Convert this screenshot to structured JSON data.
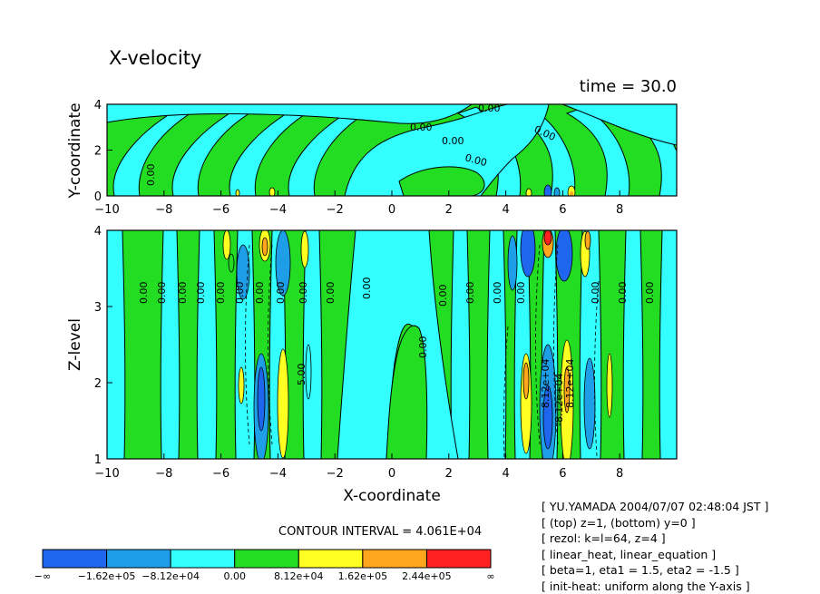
{
  "chart_data": [
    {
      "type": "heatmap",
      "title": "X-velocity",
      "subtitle": "time = 30.0",
      "ylabel": "Y-coordinate",
      "xlim": [
        -10,
        10
      ],
      "ylim": [
        0,
        4
      ],
      "xticks": [
        "-10",
        "-8",
        "-6",
        "-4",
        "-2",
        "0",
        "2",
        "4",
        "6",
        "8"
      ],
      "yticks": [
        "0",
        "2",
        "4"
      ],
      "contour_labels": [
        "0.00",
        "0.00",
        "0.00",
        "0.00",
        "0.00",
        "0.00"
      ]
    },
    {
      "type": "heatmap",
      "xlabel": "X-coordinate",
      "ylabel": "Z-level",
      "xlim": [
        -10,
        10
      ],
      "ylim": [
        1,
        4
      ],
      "xticks": [
        "-10",
        "-8",
        "-6",
        "-4",
        "-2",
        "0",
        "2",
        "4",
        "6",
        "8"
      ],
      "yticks": [
        "1",
        "2",
        "3",
        "4"
      ],
      "contour_labels": [
        "0.00",
        "0.00",
        "0.00",
        "0.00",
        "0.00",
        "0.00",
        "0.00",
        "0.00",
        "0.00",
        "0.00",
        "0.00",
        "0.00",
        "0.00",
        "0.00",
        "0.00",
        "0.00",
        "8.12e+04",
        "-8.12e+04",
        "8.12e+04",
        "5.00"
      ]
    }
  ],
  "contour_interval": "CONTOUR INTERVAL = 4.061E+04",
  "colorbar": {
    "colors": [
      "#1e66ee",
      "#1e9ee6",
      "#33ffff",
      "#22dd22",
      "#ffff22",
      "#ffa61e",
      "#ff2020"
    ],
    "labels": [
      "-∞",
      "-1.62e+05",
      "-8.12e+04",
      "0.00",
      "8.12e+04",
      "1.62e+05",
      "2.44e+05",
      "∞"
    ]
  },
  "info_lines": [
    "[ YU.YAMADA 2004/07/07 02:48:04 JST ]",
    "[ (top) z=1, (bottom) y=0 ]",
    "[ rezol: k=l=64, z=4 ]",
    "[ linear_heat, linear_equation ]",
    "[ beta=1, eta1 = 1.5, eta2 = -1.5 ]",
    "[ init-heat: uniform along the Y-axis ]"
  ]
}
